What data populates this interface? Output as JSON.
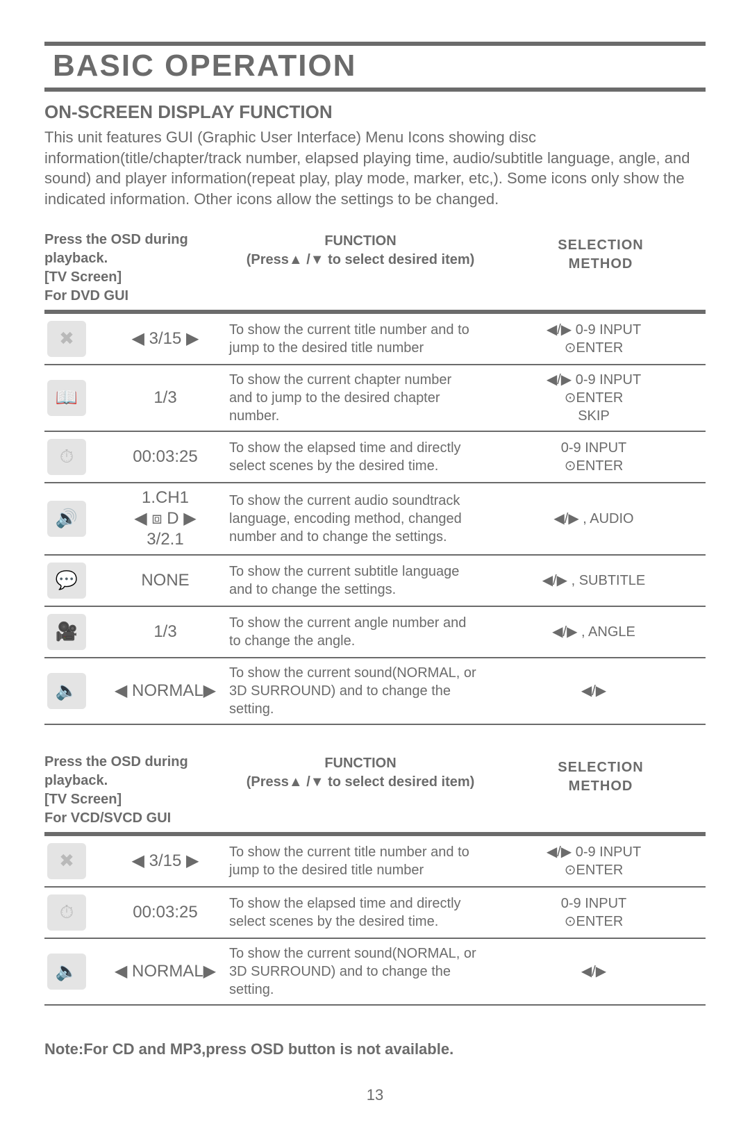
{
  "page": {
    "title": "BASIC OPERATION",
    "subtitle": "ON-SCREEN DISPLAY FUNCTION",
    "intro": "This unit features GUI (Graphic User Interface) Menu Icons showing disc information(title/chapter/track number, elapsed playing time, audio/subtitle language, angle, and sound) and player information(repeat play, play mode, marker, etc,). Some icons only show the indicated information. Other icons allow the settings to be changed.",
    "note": "Note:For CD and MP3,press OSD button is not available.",
    "page_number": "13"
  },
  "headers": {
    "left_line1": "Press the OSD during playback.",
    "left_line2_dvd": "[TV Screen]",
    "left_line3_dvd": "For DVD GUI",
    "left_line2_vcd": "[TV Screen]",
    "left_line3_vcd": "For VCD/SVCD GUI",
    "function_title": "FUNCTION",
    "function_sub": "(Press▲ /▼ to select desired item)",
    "selection_title": "SELECTION",
    "selection_sub": "METHOD"
  },
  "table_dvd": [
    {
      "icon_glyph": "✖",
      "value": "◀ 3/15 ▶",
      "function": "To show the current title number and to jump to the desired title number",
      "selection": "◀/▶  0-9 INPUT\n⊙ENTER"
    },
    {
      "icon_glyph": "📖",
      "value": "1/3",
      "function": "To show the current chapter number and to jump to the desired chapter number.",
      "selection": "◀/▶  0-9 INPUT\n⊙ENTER\nSKIP"
    },
    {
      "icon_glyph": "⏱",
      "value": "00:03:25",
      "function": "To show the elapsed time and directly select scenes by the desired time.",
      "selection": "0-9 INPUT\n⊙ENTER"
    },
    {
      "icon_glyph": "🔊",
      "value": "1.CH1\n◀ ⧈ D ▶\n3/2.1",
      "function": "To show the current audio soundtrack language, encoding method, changed number and to change the settings.",
      "selection": "◀/▶ ,   AUDIO"
    },
    {
      "icon_glyph": "💬",
      "value": "NONE",
      "function": "To show the current subtitle language and to change the settings.",
      "selection": "◀/▶ ,   SUBTITLE"
    },
    {
      "icon_glyph": "🎥",
      "value": "1/3",
      "function": "To show the current angle number and to change the angle.",
      "selection": "◀/▶ ,   ANGLE"
    },
    {
      "icon_glyph": "🔈",
      "value": "◀ NORMAL▶",
      "function": "To show the current sound(NORMAL, or 3D SURROUND) and to change the setting.",
      "selection": "◀/▶"
    }
  ],
  "table_vcd": [
    {
      "icon_glyph": "✖",
      "value": "◀ 3/15 ▶",
      "function": "To show the current title number and to jump to the desired title number",
      "selection": "◀/▶  0-9 INPUT\n⊙ENTER"
    },
    {
      "icon_glyph": "⏱",
      "value": "00:03:25",
      "function": "To show the elapsed time and directly select scenes by the desired time.",
      "selection": "0-9 INPUT\n⊙ENTER"
    },
    {
      "icon_glyph": "🔈",
      "value": "◀ NORMAL▶",
      "function": "To show the current sound(NORMAL, or 3D SURROUND) and to change the setting.",
      "selection": "◀/▶"
    }
  ],
  "style": {
    "text_color": "#6b6b6b",
    "icon_bg": "#e4e4e4",
    "border_color": "#6b6b6b",
    "background": "#ffffff",
    "title_fontsize": 44,
    "body_fontsize": 22,
    "table_fontsize": 20
  }
}
